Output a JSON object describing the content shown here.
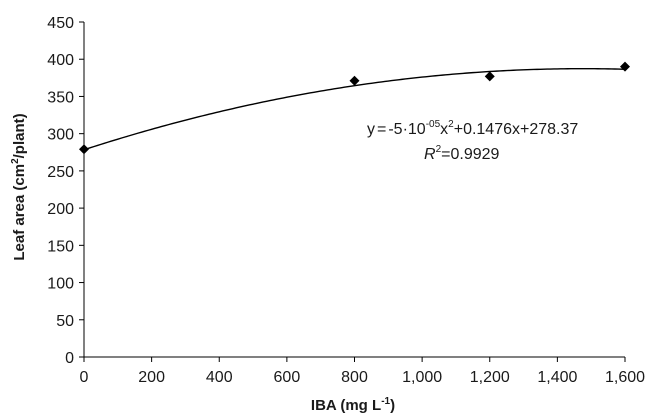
{
  "chart_data": {
    "type": "scatter",
    "xlabel": "IBA (mg L⁻¹)",
    "ylabel": "Leaf area (cm²/plant)",
    "xlim": [
      0,
      1600
    ],
    "ylim": [
      0,
      450
    ],
    "x_ticks": [
      0,
      200,
      400,
      600,
      800,
      1000,
      1200,
      1400,
      1600
    ],
    "x_tick_labels": [
      "0",
      "200",
      "400",
      "600",
      "800",
      "1,000",
      "1,200",
      "1,400",
      "1,600"
    ],
    "y_ticks": [
      0,
      50,
      100,
      150,
      200,
      250,
      300,
      350,
      400,
      450
    ],
    "y_tick_labels": [
      "0",
      "50",
      "100",
      "150",
      "200",
      "250",
      "300",
      "350",
      "400",
      "450"
    ],
    "grid": false,
    "series": [
      {
        "marker": "diamond",
        "color": "#000000",
        "x": [
          0,
          800,
          1200,
          1600
        ],
        "y": [
          279,
          371,
          377,
          390
        ]
      }
    ],
    "trendline": {
      "type": "polynomial",
      "coefficients": {
        "a": -5e-05,
        "b": 0.1476,
        "c": 278.37
      },
      "equation_text": "y = -5·10⁻⁰⁵x² + 0.1476x + 278.37",
      "r2_text": "R² = 0.9929"
    }
  }
}
